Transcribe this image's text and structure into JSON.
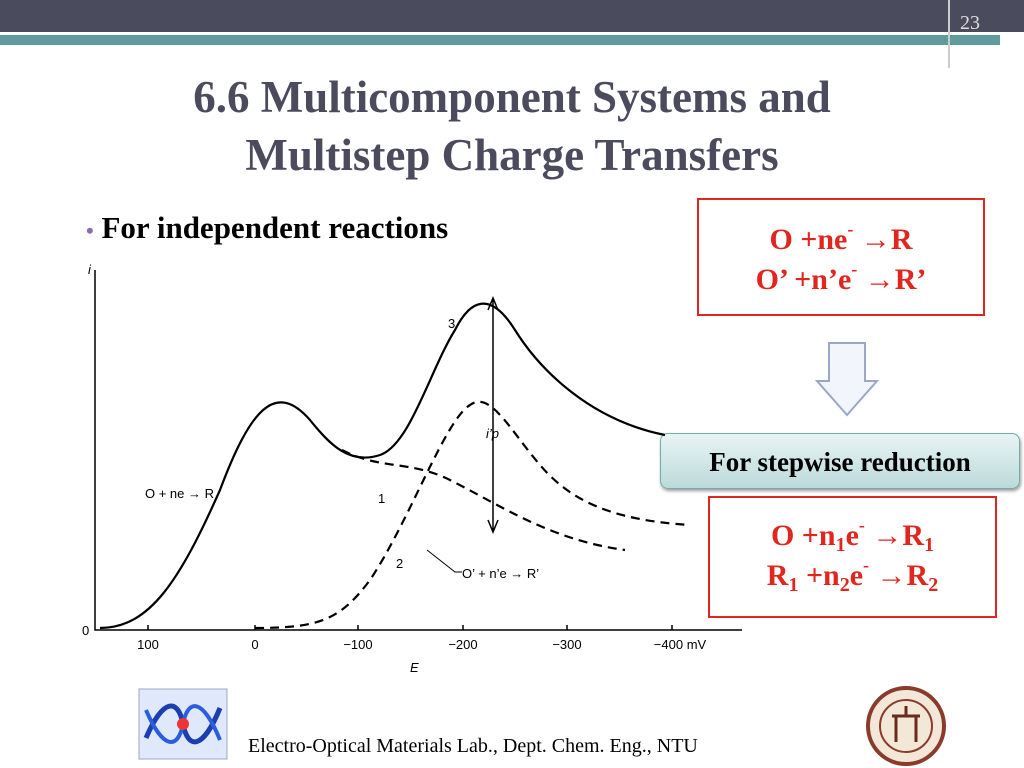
{
  "page_number": "23",
  "title": [
    "6.6 Multicomponent Systems and",
    "Multistep Charge Transfers"
  ],
  "bullet": "For independent reactions",
  "independent_reactions": [
    [
      {
        "text": "O +ne"
      },
      {
        "sup": "-"
      },
      {
        "text": " →R"
      }
    ],
    [
      {
        "text": "O’ +n’e"
      },
      {
        "sup": "-"
      },
      {
        "text": " →R’"
      }
    ]
  ],
  "stepwise_label": "For stepwise reduction",
  "stepwise_reactions": [
    [
      {
        "text": "O +n"
      },
      {
        "sub": "1"
      },
      {
        "text": "e"
      },
      {
        "sup": "-"
      },
      {
        "text": " →R"
      },
      {
        "sub": "1"
      }
    ],
    [
      {
        "text": "R"
      },
      {
        "sub": "1"
      },
      {
        "text": " +n"
      },
      {
        "sub": "2"
      },
      {
        "text": "e"
      },
      {
        "sup": "-"
      },
      {
        "text": " →R"
      },
      {
        "sub": "2"
      }
    ]
  ],
  "figure": {
    "y_axis_label": "i",
    "x_axis_label": "E",
    "y_zero": "0",
    "x_ticks": [
      "100",
      "0",
      "−100",
      "−200",
      "−300",
      "−400 mV"
    ],
    "curve_labels": [
      "3",
      "1",
      "2"
    ],
    "peak_label": "i’p",
    "reaction_1": "O + ne → R",
    "reaction_2": "O’ + n’e → R’"
  },
  "footer": "Electro-Optical Materials Lab., Dept. Chem. Eng., NTU"
}
